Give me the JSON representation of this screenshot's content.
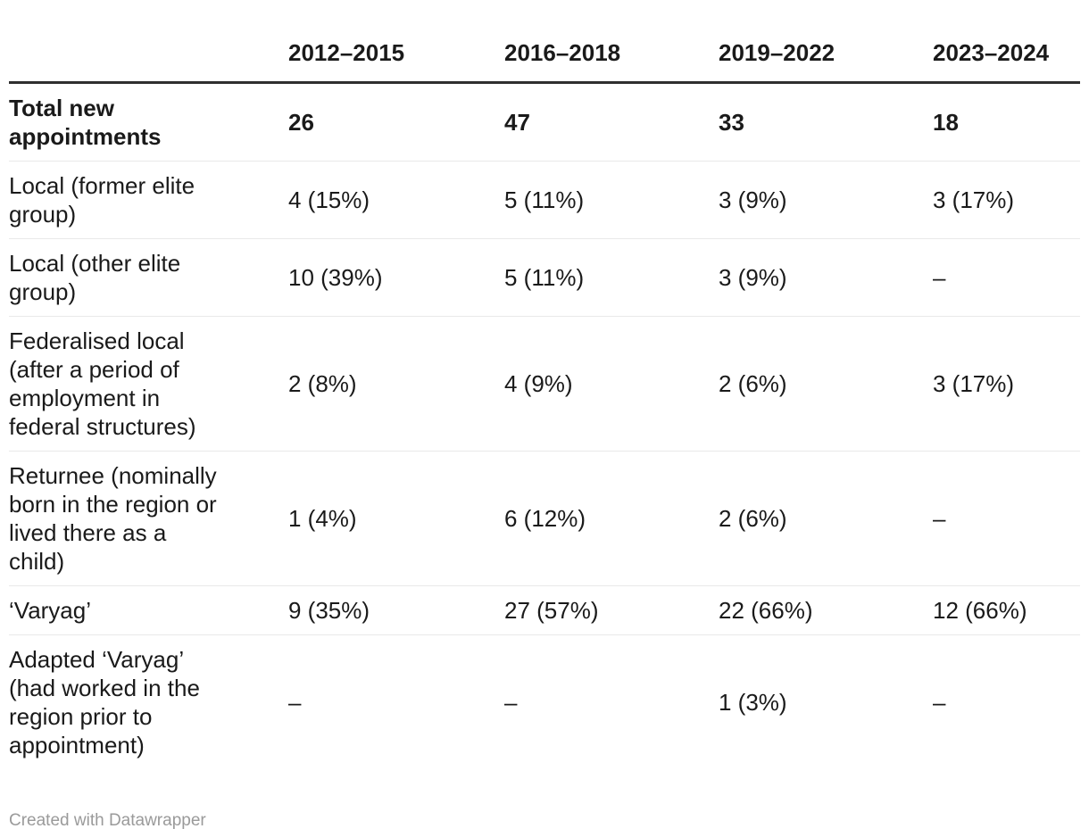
{
  "chart_data": {
    "type": "table",
    "columns": [
      "",
      "2012–2015",
      "2016–2018",
      "2019–2022",
      "2023–2024"
    ],
    "rows": [
      {
        "label": "Total new appointments",
        "values": [
          "26",
          "47",
          "33",
          "18"
        ]
      },
      {
        "label": "Local (former elite group)",
        "values": [
          "4 (15%)",
          "5 (11%)",
          "3 (9%)",
          "3 (17%)"
        ]
      },
      {
        "label": "Local (other elite group)",
        "values": [
          "10 (39%)",
          "5 (11%)",
          "3 (9%)",
          "–"
        ]
      },
      {
        "label": "Federalised local (after a period of employment in federal structures)",
        "values": [
          "2 (8%)",
          "4 (9%)",
          "2 (6%)",
          "3 (17%)"
        ]
      },
      {
        "label": "Returnee (nominally born in the region or lived there as a child)",
        "values": [
          "1 (4%)",
          "6 (12%)",
          "2 (6%)",
          "–"
        ]
      },
      {
        "label": "‘Varyag’",
        "values": [
          "9 (35%)",
          "27 (57%)",
          "22 (66%)",
          "12 (66%)"
        ]
      },
      {
        "label": "Adapted ‘Varyag’ (had worked in the region prior to appointment)",
        "values": [
          "–",
          "–",
          "1 (3%)",
          "–"
        ]
      }
    ]
  },
  "table": {
    "columns": [
      "",
      "2012–2015",
      "2016–2018",
      "2019–2022",
      "2023–2024"
    ],
    "rows": [
      {
        "label": "Total new\nappointments",
        "bold": true,
        "values": [
          "26",
          "47",
          "33",
          "18"
        ]
      },
      {
        "label": "Local (former elite\ngroup)",
        "bold": false,
        "values": [
          "4 (15%)",
          "5 (11%)",
          "3 (9%)",
          "3 (17%)"
        ]
      },
      {
        "label": "Local (other elite\ngroup)",
        "bold": false,
        "values": [
          "10 (39%)",
          "5 (11%)",
          "3 (9%)",
          "–"
        ]
      },
      {
        "label": "Federalised local\n(after a period of\nemployment in\nfederal structures)",
        "bold": false,
        "values": [
          "2 (8%)",
          "4 (9%)",
          "2 (6%)",
          "3 (17%)"
        ]
      },
      {
        "label": "Returnee (nominally\nborn in the region or\nlived there as a\nchild)",
        "bold": false,
        "values": [
          "1 (4%)",
          "6 (12%)",
          "2 (6%)",
          "–"
        ]
      },
      {
        "label": "‘Varyag’",
        "bold": false,
        "values": [
          "9 (35%)",
          "27 (57%)",
          "22 (66%)",
          "12 (66%)"
        ]
      },
      {
        "label": "Adapted ‘Varyag’\n(had worked in the\nregion prior to\nappointment)",
        "bold": false,
        "values": [
          "–",
          "–",
          "1 (3%)",
          "–"
        ]
      }
    ]
  },
  "footer": {
    "attribution": "Created with Datawrapper"
  },
  "colors": {
    "text": "#1a1a1a",
    "header_rule": "#2f2f2f",
    "row_rule": "#e9e9e9",
    "attribution_text": "#9a9a9a"
  }
}
